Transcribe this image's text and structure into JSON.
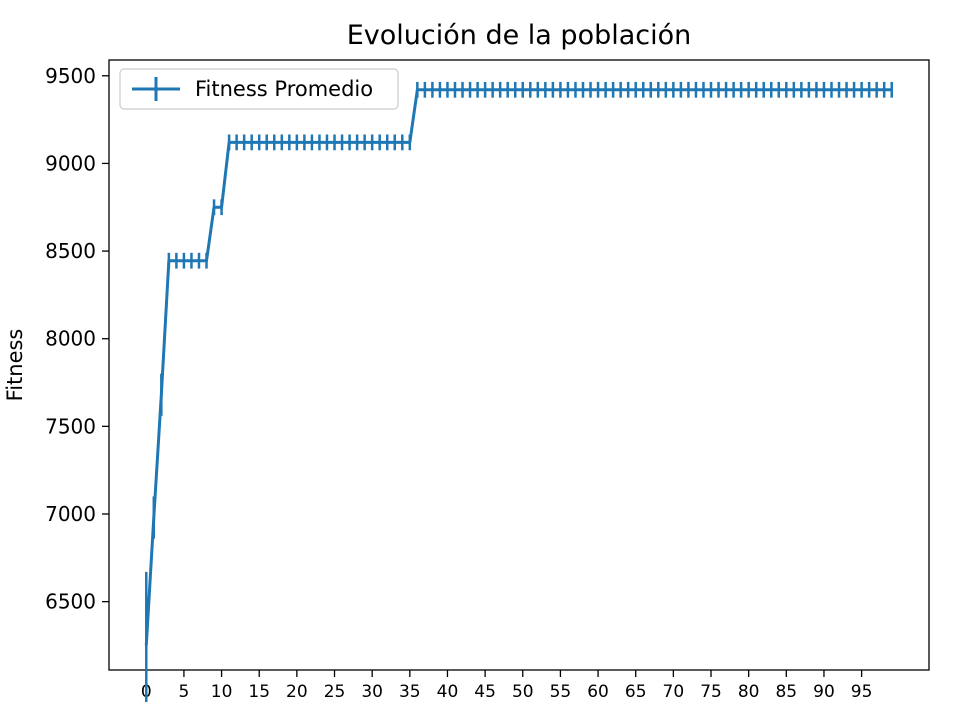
{
  "chart_data": {
    "type": "line",
    "title": "Evolución de la población",
    "xlabel": "",
    "ylabel": "Fitness",
    "xlim": [
      -4.95,
      103.95
    ],
    "ylim": [
      6110,
      9590
    ],
    "x_ticks": [
      0,
      5,
      10,
      15,
      20,
      25,
      30,
      35,
      40,
      45,
      50,
      55,
      60,
      65,
      70,
      75,
      80,
      85,
      90,
      95
    ],
    "y_ticks": [
      6500,
      7000,
      7500,
      8000,
      8500,
      9000,
      9500
    ],
    "grid": false,
    "legend_position": "top-left",
    "series": [
      {
        "name": "Fitness Promedio",
        "color": "#1f77b4",
        "errorbars": true,
        "x": [
          0,
          1,
          2,
          3,
          4,
          5,
          6,
          7,
          8,
          9,
          10,
          11,
          12,
          13,
          14,
          15,
          16,
          17,
          18,
          19,
          20,
          21,
          22,
          23,
          24,
          25,
          26,
          27,
          28,
          29,
          30,
          31,
          32,
          33,
          34,
          35,
          36,
          37,
          38,
          39,
          40,
          41,
          42,
          43,
          44,
          45,
          46,
          47,
          48,
          49,
          50,
          51,
          52,
          53,
          54,
          55,
          56,
          57,
          58,
          59,
          60,
          61,
          62,
          63,
          64,
          65,
          66,
          67,
          68,
          69,
          70,
          71,
          72,
          73,
          74,
          75,
          76,
          77,
          78,
          79,
          80,
          81,
          82,
          83,
          84,
          85,
          86,
          87,
          88,
          89,
          90,
          91,
          92,
          93,
          94,
          95,
          96,
          97,
          98,
          99
        ],
        "y": [
          6250,
          6980,
          7680,
          8445,
          8445,
          8445,
          8445,
          8445,
          8445,
          8750,
          8750,
          9120,
          9120,
          9120,
          9120,
          9120,
          9120,
          9120,
          9120,
          9120,
          9120,
          9120,
          9120,
          9120,
          9120,
          9120,
          9120,
          9120,
          9120,
          9120,
          9120,
          9120,
          9120,
          9120,
          9120,
          9120,
          9420,
          9420,
          9420,
          9420,
          9420,
          9420,
          9420,
          9420,
          9420,
          9420,
          9420,
          9420,
          9420,
          9420,
          9420,
          9420,
          9420,
          9420,
          9420,
          9420,
          9420,
          9420,
          9420,
          9420,
          9420,
          9420,
          9420,
          9420,
          9420,
          9420,
          9420,
          9420,
          9420,
          9420,
          9420,
          9420,
          9420,
          9420,
          9420,
          9420,
          9420,
          9420,
          9420,
          9420,
          9420,
          9420,
          9420,
          9420,
          9420,
          9420,
          9420,
          9420,
          9420,
          9420,
          9420,
          9420,
          9420,
          9420,
          9420,
          9420,
          9420,
          9420,
          9420,
          9420
        ],
        "yerr_first_points": [
          420,
          120,
          120
        ]
      }
    ]
  }
}
